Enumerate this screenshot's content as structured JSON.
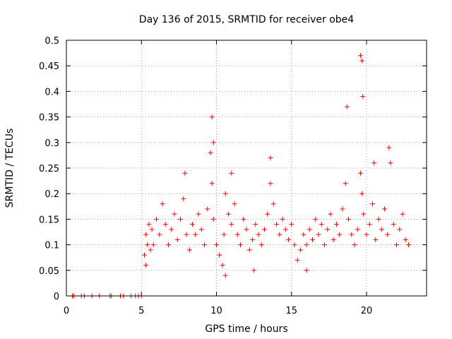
{
  "chart_data": {
    "type": "scatter",
    "title": "Day 136 of 2015, SRMTID for receiver obe4",
    "xlabel": "GPS time / hours",
    "ylabel": "SRMTID / TECUs",
    "xlim": [
      0,
      24
    ],
    "ylim": [
      0,
      0.5
    ],
    "grid": true,
    "marker": "+",
    "marker_color": "#ff0000",
    "xticks": [
      0,
      5,
      10,
      15,
      20
    ],
    "xtick_labels": [
      "0",
      "5",
      "10",
      "15",
      "20"
    ],
    "yticks": [
      0,
      0.05,
      0.1,
      0.15,
      0.2,
      0.25,
      0.3,
      0.35,
      0.4,
      0.45,
      0.5
    ],
    "ytick_labels": [
      "0",
      "0.05",
      "0.1",
      "0.15",
      "0.2",
      "0.25",
      "0.3",
      "0.35",
      "0.4",
      "0.45",
      "0.5"
    ],
    "series": [
      {
        "name": "obe4",
        "x": [
          0.4,
          0.5,
          1.0,
          1.2,
          1.7,
          2.2,
          2.9,
          3.0,
          3.6,
          3.8,
          4.3,
          4.6,
          4.8,
          5.0,
          5.2,
          5.3,
          5.4,
          5.5,
          5.6,
          5.7,
          5.8,
          6.0,
          6.2,
          6.4,
          6.6,
          6.8,
          7.0,
          7.2,
          7.4,
          7.6,
          7.8,
          8.0,
          8.2,
          8.4,
          8.6,
          8.8,
          9.0,
          9.2,
          9.4,
          9.6,
          9.7,
          9.8,
          10.0,
          10.2,
          10.4,
          10.5,
          10.6,
          10.8,
          11.0,
          11.2,
          11.4,
          11.6,
          11.8,
          12.0,
          12.2,
          12.4,
          12.6,
          12.8,
          13.0,
          13.2,
          13.4,
          13.6,
          13.8,
          14.0,
          14.2,
          14.4,
          14.6,
          14.8,
          15.0,
          15.2,
          15.4,
          15.6,
          15.8,
          16.0,
          16.2,
          16.4,
          16.6,
          16.8,
          17.0,
          17.2,
          17.4,
          17.6,
          17.8,
          18.0,
          18.2,
          18.4,
          18.6,
          18.8,
          19.0,
          19.2,
          19.4,
          19.6,
          19.7,
          19.8,
          20.0,
          20.2,
          20.4,
          20.6,
          20.8,
          21.0,
          21.2,
          21.4,
          21.6,
          21.8,
          22.0,
          22.2,
          22.4,
          22.6,
          22.8,
          9.7,
          9.8,
          19.6,
          19.7,
          19.75,
          18.7,
          21.5,
          13.6,
          7.9,
          11.0,
          20.5,
          10.6,
          16.0,
          5.3,
          12.5
        ],
        "y": [
          0,
          0,
          0,
          0,
          0,
          0,
          0,
          0,
          0,
          0,
          0,
          0,
          0,
          0,
          0.08,
          0.12,
          0.1,
          0.14,
          0.09,
          0.13,
          0.1,
          0.15,
          0.12,
          0.18,
          0.14,
          0.1,
          0.13,
          0.16,
          0.11,
          0.15,
          0.19,
          0.12,
          0.09,
          0.14,
          0.12,
          0.16,
          0.13,
          0.1,
          0.17,
          0.28,
          0.22,
          0.15,
          0.1,
          0.08,
          0.06,
          0.12,
          0.2,
          0.16,
          0.14,
          0.18,
          0.12,
          0.1,
          0.15,
          0.13,
          0.09,
          0.11,
          0.14,
          0.12,
          0.1,
          0.13,
          0.16,
          0.22,
          0.18,
          0.14,
          0.12,
          0.15,
          0.13,
          0.11,
          0.14,
          0.1,
          0.07,
          0.09,
          0.12,
          0.1,
          0.13,
          0.11,
          0.15,
          0.12,
          0.14,
          0.1,
          0.13,
          0.16,
          0.11,
          0.14,
          0.12,
          0.17,
          0.22,
          0.15,
          0.12,
          0.1,
          0.13,
          0.24,
          0.2,
          0.16,
          0.12,
          0.14,
          0.18,
          0.11,
          0.15,
          0.13,
          0.17,
          0.12,
          0.26,
          0.14,
          0.1,
          0.13,
          0.16,
          0.11,
          0.1,
          0.35,
          0.3,
          0.47,
          0.46,
          0.39,
          0.37,
          0.29,
          0.27,
          0.24,
          0.24,
          0.26,
          0.04,
          0.05,
          0.06,
          0.05
        ]
      }
    ]
  }
}
